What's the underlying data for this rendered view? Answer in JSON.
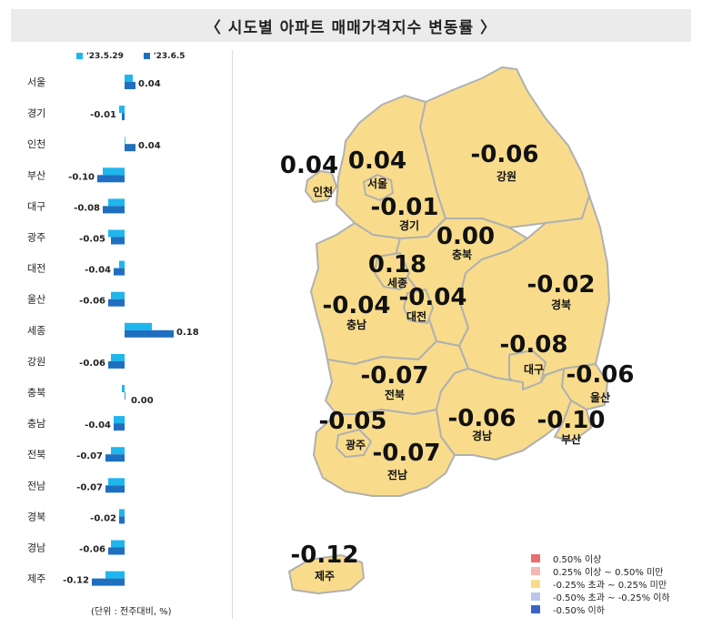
{
  "title": "〈 시도별 아파트 매매가격지수 변동률 〉",
  "unit_note": "(단위 : 전주대비, %)",
  "colors": {
    "series1": "#1fb6ec",
    "series2": "#1f6fc0",
    "map_fill": "#f8dc8c",
    "map_stroke": "#b0b0b0"
  },
  "chart_data": {
    "type": "bar",
    "orientation": "horizontal",
    "categories": [
      "서울",
      "경기",
      "인천",
      "부산",
      "대구",
      "광주",
      "대전",
      "울산",
      "세종",
      "강원",
      "충북",
      "충남",
      "전북",
      "전남",
      "경북",
      "경남",
      "제주"
    ],
    "series": [
      {
        "name": "'23.5.29",
        "values": [
          0.03,
          -0.02,
          0.0,
          -0.08,
          -0.06,
          -0.06,
          -0.02,
          -0.05,
          0.1,
          -0.05,
          -0.01,
          -0.04,
          -0.05,
          -0.06,
          -0.02,
          -0.05,
          -0.07
        ]
      },
      {
        "name": "'23.6.5",
        "values": [
          0.04,
          -0.01,
          0.04,
          -0.1,
          -0.08,
          -0.05,
          -0.04,
          -0.06,
          0.18,
          -0.06,
          0.0,
          -0.04,
          -0.07,
          -0.07,
          -0.02,
          -0.06,
          -0.12
        ]
      }
    ],
    "value_labels": [
      "0.04",
      "-0.01",
      "0.04",
      "-0.10",
      "-0.08",
      "-0.05",
      "-0.04",
      "-0.06",
      "0.18",
      "-0.06",
      "0.00",
      "-0.04",
      "-0.07",
      "-0.07",
      "-0.02",
      "-0.06",
      "-0.12"
    ]
  },
  "map_regions": [
    {
      "name": "인천",
      "value": "0.04"
    },
    {
      "name": "서울",
      "value": "0.04"
    },
    {
      "name": "강원",
      "value": "-0.06"
    },
    {
      "name": "경기",
      "value": "-0.01"
    },
    {
      "name": "충북",
      "value": "0.00"
    },
    {
      "name": "세종",
      "value": "0.18"
    },
    {
      "name": "경북",
      "value": "-0.02"
    },
    {
      "name": "충남",
      "value": "-0.04"
    },
    {
      "name": "대전",
      "value": "-0.04"
    },
    {
      "name": "대구",
      "value": "-0.08"
    },
    {
      "name": "전북",
      "value": "-0.07"
    },
    {
      "name": "울산",
      "value": "-0.06"
    },
    {
      "name": "광주",
      "value": "-0.05"
    },
    {
      "name": "경남",
      "value": "-0.06"
    },
    {
      "name": "부산",
      "value": "-0.10"
    },
    {
      "name": "전남",
      "value": "-0.07"
    },
    {
      "name": "제주",
      "value": "-0.12"
    }
  ],
  "map_legend": [
    {
      "label": "0.50% 이상",
      "color": "#e86f6f"
    },
    {
      "label": "0.25% 이상 ~ 0.50% 미만",
      "color": "#f4b7b7"
    },
    {
      "label": "-0.25% 초과 ~ 0.25% 미만",
      "color": "#f8dc8c"
    },
    {
      "label": "-0.50% 초과 ~ -0.25% 이하",
      "color": "#b9c7ec"
    },
    {
      "label": "-0.50% 이하",
      "color": "#3a63c4"
    }
  ]
}
